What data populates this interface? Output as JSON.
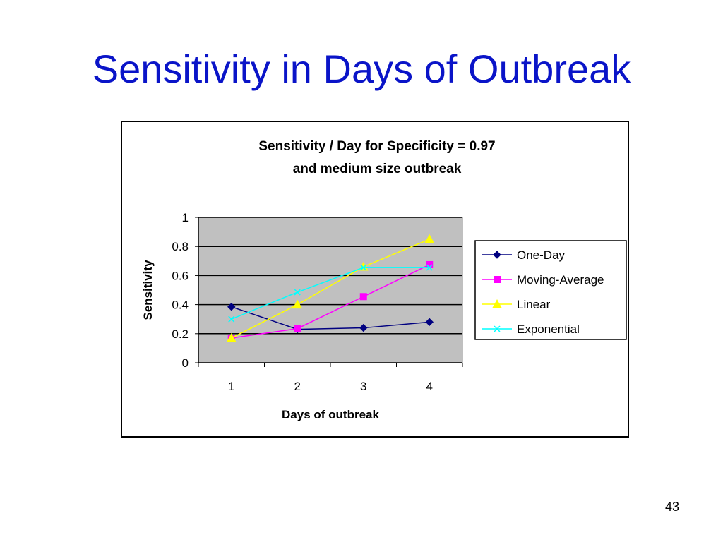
{
  "slide": {
    "title": "Sensitivity in Days of Outbreak",
    "page_number": "43"
  },
  "chart_data": {
    "type": "line",
    "title_lines": [
      "Sensitivity / Day for Specificity = 0.97",
      "and medium size outbreak"
    ],
    "xlabel": "Days of outbreak",
    "ylabel": "Sensitivity",
    "categories": [
      "1",
      "2",
      "3",
      "4"
    ],
    "ylim": [
      0,
      1
    ],
    "yticks": [
      "0",
      "0.2",
      "0.4",
      "0.6",
      "0.8",
      "1"
    ],
    "grid": true,
    "plot_background": "#c0c0c0",
    "legend_position": "right",
    "series": [
      {
        "name": "One-Day",
        "color": "#000080",
        "marker": "diamond",
        "values": [
          0.385,
          0.23,
          0.24,
          0.28
        ]
      },
      {
        "name": "Moving-Average",
        "color": "#ff00ff",
        "marker": "square",
        "values": [
          0.17,
          0.235,
          0.455,
          0.675
        ]
      },
      {
        "name": "Linear",
        "color": "#ffff00",
        "marker": "triangle",
        "values": [
          0.17,
          0.4,
          0.66,
          0.85
        ]
      },
      {
        "name": "Exponential",
        "color": "#00ffff",
        "marker": "x",
        "values": [
          0.3,
          0.485,
          0.655,
          0.655
        ]
      }
    ]
  }
}
